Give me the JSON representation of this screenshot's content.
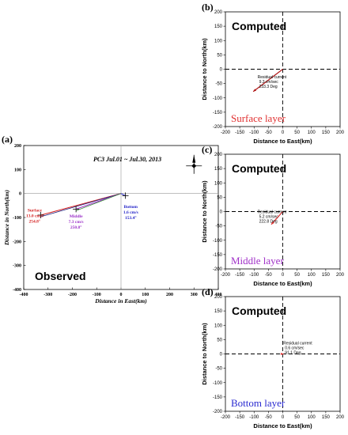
{
  "chart_data": [
    {
      "type": "scatter",
      "panel": "(a)",
      "title": "PC3 Jul.01 ~ Jul.30, 2013",
      "xlabel": "Distance in East(km)",
      "ylabel": "Distance in North(km)",
      "xlim": [
        -400,
        400
      ],
      "ylim": [
        -400,
        200
      ],
      "xticks": [
        "-400",
        "-300",
        "-200",
        "-100",
        "0",
        "100",
        "200",
        "300",
        "400"
      ],
      "yticks": [
        "200",
        "100",
        "0",
        "-100",
        "-200",
        "-300",
        "-400"
      ],
      "corner_text": "Observed",
      "series": [
        {
          "name": "Surface",
          "speed": "13.0 cm/s",
          "direction": "254.8°",
          "color": "#d42020",
          "x": [
            0,
            -330
          ],
          "y": [
            0,
            -90
          ]
        },
        {
          "name": "Middle",
          "speed": "7.3 cm/s",
          "direction": "250.8°",
          "color": "#9b30c8",
          "x": [
            0,
            -185
          ],
          "y": [
            0,
            -65
          ]
        },
        {
          "name": "Bottom",
          "speed": "1.6 cm/s",
          "direction": "153.4°",
          "color": "#2323c8",
          "x": [
            0,
            18
          ],
          "y": [
            0,
            -9
          ]
        }
      ]
    },
    {
      "type": "line",
      "panel": "(b)",
      "title": "Computed",
      "xlabel": "Distance to East(km)",
      "ylabel": "Distance to North(km)",
      "xlim": [
        -200,
        200
      ],
      "ylim": [
        -200,
        200
      ],
      "xticks": [
        "-200",
        "-150",
        "-100",
        "-50",
        "0",
        "50",
        "100",
        "150",
        "200"
      ],
      "yticks": [
        "200",
        "150",
        "100",
        "50",
        "0",
        "-50",
        "-100",
        "-150",
        "-200"
      ],
      "layer_label": "Surface layer",
      "layer_color": "#e03030",
      "vector": {
        "x": -103,
        "y": -78,
        "color": "#b01818"
      },
      "residual": {
        "label": "Residual current",
        "speed": "9.3 cm/sec",
        "direction": "233.3 Deg"
      }
    },
    {
      "type": "line",
      "panel": "(c)",
      "title": "Computed",
      "xlabel": "Distance to East(km)",
      "ylabel": "Distance to North(km)",
      "xlim": [
        -200,
        200
      ],
      "ylim": [
        -200,
        200
      ],
      "xticks": [
        "-200",
        "-150",
        "-100",
        "-50",
        "0",
        "50",
        "100",
        "150",
        "200"
      ],
      "yticks": [
        "200",
        "150",
        "100",
        "50",
        "0",
        "-50",
        "-100",
        "-150",
        "-200"
      ],
      "layer_label": "Middle layer",
      "layer_color": "#a030c8",
      "vector": {
        "x": -40,
        "y": -45,
        "color": "#e03030"
      },
      "residual": {
        "label": "Residual current",
        "speed": "5.2 cm/sec",
        "direction": "222.8 Deg"
      }
    },
    {
      "type": "line",
      "panel": "(d)",
      "title": "Computed",
      "xlabel": "Distance to East(km)",
      "ylabel": "Distance to North(km)",
      "xlim": [
        -200,
        200
      ],
      "ylim": [
        -200,
        200
      ],
      "xticks": [
        "-200",
        "-150",
        "-100",
        "-50",
        "0",
        "50",
        "100",
        "150",
        "200"
      ],
      "yticks": [
        "200",
        "150",
        "100",
        "50",
        "0",
        "-50",
        "-100",
        "-150",
        "-200"
      ],
      "layer_label": "Bottom layer",
      "layer_color": "#2a2ad0",
      "vector": {
        "x": 3,
        "y": 0,
        "color": "#e03030"
      },
      "residual": {
        "label": "Residual current",
        "speed": "0.6 cm/sec",
        "direction": "91.1 Deg"
      }
    }
  ]
}
